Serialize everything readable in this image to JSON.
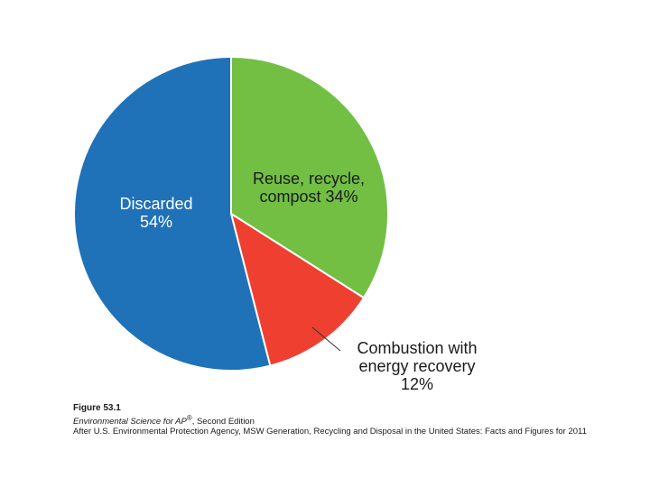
{
  "chart_data": {
    "type": "pie",
    "categories": [
      "Discarded",
      "Reuse, recycle, compost",
      "Combustion with energy recovery"
    ],
    "values": [
      54,
      34,
      12
    ],
    "labels": [
      [
        "Discarded",
        "54%"
      ],
      [
        "Reuse, recycle,",
        "compost 34%"
      ],
      [
        "Combustion with",
        "energy recovery",
        "12%"
      ]
    ],
    "colors": [
      "#1f72b8",
      "#72bf44",
      "#ee3f31"
    ],
    "slice_order": [
      "Reuse, recycle, compost",
      "Combustion with energy recovery",
      "Discarded"
    ],
    "start": "12 o'clock, clockwise",
    "legend": "none, labels placed on slices"
  },
  "caption": {
    "figure": "Figure 53.1",
    "book_italic": "Environmental Science for AP",
    "book_sup": "®",
    "book_rest": ", Second Edition",
    "source": "After U.S. Environmental Protection Agency, MSW Generation, Recycling and Disposal in the United States: Facts and Figures for 2011"
  }
}
